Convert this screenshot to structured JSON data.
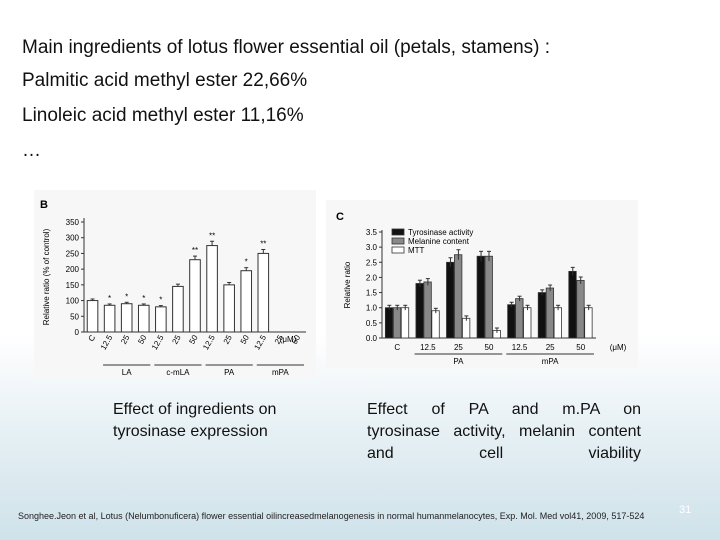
{
  "slide": {
    "lines": [
      "Main ingredients of lotus flower essential oil (petals, stamens) :",
      "Palmitic acid methyl ester 22,66%",
      "Linoleic acid methyl ester 11,16%",
      "…"
    ],
    "caption_left": "Effect of ingredients on tyrosinase expression",
    "caption_right_1": "Effect of PA and m.PA on",
    "caption_right_2": "tyrosinase activity, melanin content",
    "caption_right_3": "and cell viability",
    "citation": "Songhee.Jeon et al, Lotus (Nelumbonuficera) flower essential oilincreasedmelanogenesis in normal humanmelanocytes, Exp. Mol. Med vol41, 2009, 517-524",
    "page_number": "31"
  },
  "chart_data": [
    {
      "type": "bar",
      "panel_label": "B",
      "ylabel": "Relative ratio (% of control)",
      "ylim": [
        0,
        350
      ],
      "yticks": [
        0,
        50,
        100,
        150,
        200,
        250,
        300,
        350
      ],
      "unit": "(μM)",
      "categories": [
        "C",
        "12.5",
        "25",
        "50",
        "12.5",
        "25",
        "50",
        "12.5",
        "25",
        "50",
        "12.5",
        "25",
        "50"
      ],
      "groups": [
        {
          "label": "LA",
          "from": 1,
          "to": 3
        },
        {
          "label": "c-mLA",
          "from": 4,
          "to": 6
        },
        {
          "label": "PA",
          "from": 7,
          "to": 9
        },
        {
          "label": "mPA",
          "from": 10,
          "to": 12
        }
      ],
      "values": [
        100,
        85,
        90,
        85,
        80,
        145,
        230,
        275,
        150,
        195,
        250,
        0,
        0
      ],
      "significance": [
        "",
        "*",
        "*",
        "*",
        "*",
        "",
        "**",
        "**",
        "",
        "*",
        "**",
        "",
        ""
      ]
    },
    {
      "type": "bar",
      "panel_label": "C",
      "ylabel": "Relative ratio",
      "ylim": [
        0,
        3.5
      ],
      "yticks": [
        0,
        0.5,
        1.0,
        1.5,
        2.0,
        2.5,
        3.0,
        3.5
      ],
      "unit": "(μM)",
      "categories": [
        "C",
        "12.5",
        "25",
        "50",
        "12.5",
        "25",
        "50"
      ],
      "groups": [
        {
          "label": "PA",
          "from": 1,
          "to": 3
        },
        {
          "label": "mPA",
          "from": 4,
          "to": 6
        }
      ],
      "series": [
        {
          "name": "Tyrosinase activity",
          "color": "#111111",
          "values": [
            1.0,
            1.8,
            2.5,
            2.7,
            1.1,
            1.5,
            2.2
          ]
        },
        {
          "name": "Melanine content",
          "color": "#888888",
          "values": [
            1.0,
            1.85,
            2.75,
            2.7,
            1.3,
            1.65,
            1.9
          ]
        },
        {
          "name": "MTT",
          "color": "#ffffff",
          "values": [
            1.0,
            0.9,
            0.65,
            0.25,
            1.0,
            1.0,
            1.0
          ]
        }
      ]
    }
  ]
}
